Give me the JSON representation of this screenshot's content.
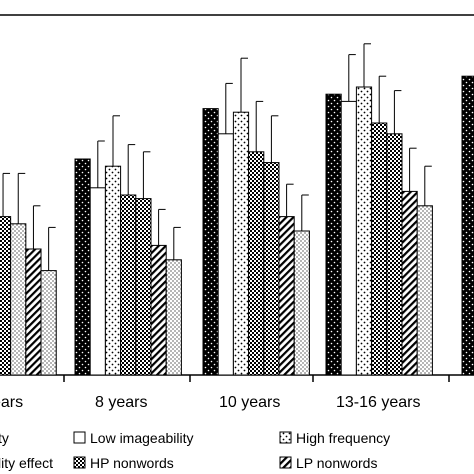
{
  "chart_data": {
    "type": "bar",
    "title": "",
    "xlabel": "",
    "ylabel": "",
    "categories": [
      "ears",
      "8 years",
      "10 years",
      "13-16 years",
      ""
    ],
    "ylim": [
      0,
      100
    ],
    "grid": false,
    "legend_position": "bottom",
    "series": [
      {
        "name": "",
        "pattern": "black-dots",
        "color": "#000000",
        "values": [
          null,
          60,
          74,
          78,
          83
        ]
      },
      {
        "name": "Low imageability",
        "pattern": "white",
        "color": "#ffffff",
        "values": [
          null,
          52,
          67,
          76,
          null
        ],
        "errors": [
          null,
          13,
          14,
          13,
          null
        ]
      },
      {
        "name": "High frequency",
        "pattern": "sparse-dots",
        "color": "#ffffff",
        "values": [
          null,
          58,
          73,
          80,
          null
        ],
        "errors": [
          null,
          14,
          15,
          12,
          null
        ]
      },
      {
        "name": "",
        "pattern": "checker-dark",
        "color": "#555555",
        "values": [
          null,
          50,
          62,
          70,
          null
        ],
        "errors": [
          null,
          14,
          14,
          13,
          null
        ]
      },
      {
        "name": "HP nonwords",
        "pattern": "checker-dark",
        "color": "#555555",
        "values": [
          null,
          49,
          59,
          67,
          null
        ],
        "errors": [
          null,
          13,
          13,
          12,
          null
        ]
      },
      {
        "name": "LP nonwords",
        "pattern": "hatch",
        "color": "#bbbbbb",
        "values": [
          null,
          36,
          44,
          51,
          null
        ],
        "errors": [
          null,
          10,
          9,
          12,
          null
        ]
      },
      {
        "name": "",
        "pattern": "fine-dots",
        "color": "#eeeeee",
        "values": [
          null,
          32,
          40,
          47,
          null
        ],
        "errors": [
          null,
          9,
          10,
          11,
          null
        ]
      }
    ],
    "partial_left_bars": [
      {
        "pattern": "checker-dark",
        "value": 44,
        "error": 12
      },
      {
        "pattern": "fine-dots",
        "value": 42,
        "error": 14
      },
      {
        "pattern": "hatch",
        "value": 35,
        "error": 12
      },
      {
        "pattern": "fine-dots",
        "value": 29,
        "error": 12
      }
    ]
  },
  "legend": {
    "items": [
      {
        "label": "ty",
        "pattern": "none"
      },
      {
        "label": "Low imageability",
        "pattern": "white"
      },
      {
        "label": "High frequency",
        "pattern": "sparse-dots"
      },
      {
        "label": "lity effect",
        "pattern": "checker-dark"
      },
      {
        "label": "HP nonwords",
        "pattern": "checker-dark"
      },
      {
        "label": "LP nonwords",
        "pattern": "hatch"
      }
    ]
  }
}
